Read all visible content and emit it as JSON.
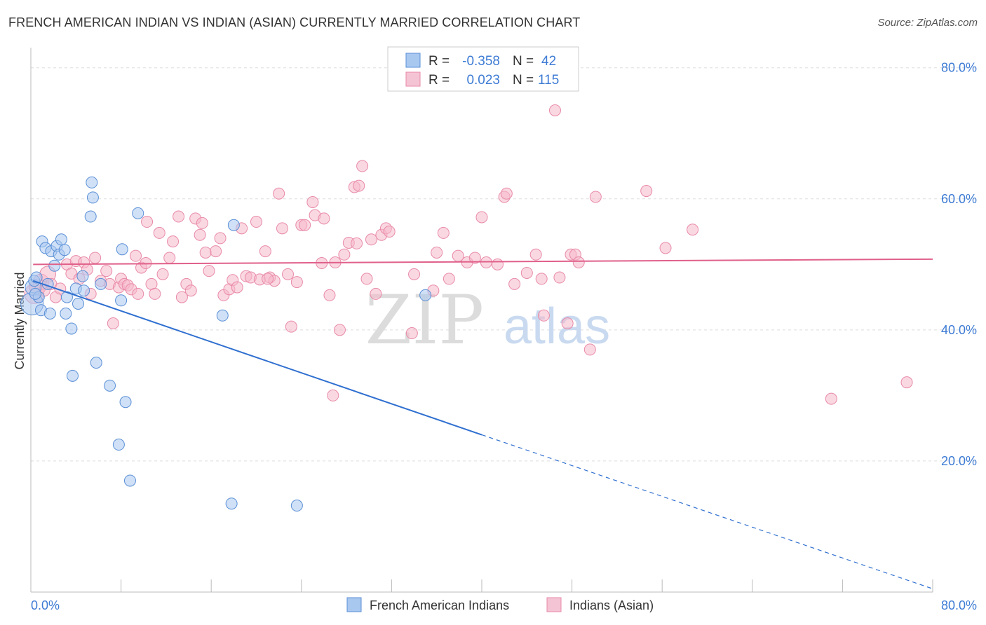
{
  "title": "FRENCH AMERICAN INDIAN VS INDIAN (ASIAN) CURRENTLY MARRIED CORRELATION CHART",
  "source": "Source: ZipAtlas.com",
  "watermark": {
    "zip": "ZIP",
    "atlas": "atlas"
  },
  "colors": {
    "blue_fill": "#a9c8f0",
    "blue_stroke": "#5b8fd6",
    "blue_line": "#2f6fd0",
    "pink_fill": "#f5b8cb",
    "pink_stroke": "#e88aa8",
    "pink_line": "#e0608a",
    "tick_text": "#3d7bd4",
    "grid": "#dddddd"
  },
  "legend": {
    "rows": [
      {
        "r_label": "R =",
        "r_value": "-0.358",
        "n_label": "N =",
        "n_value": "42",
        "swatch": "blue"
      },
      {
        "r_label": "R =",
        "r_value": "0.023",
        "n_label": "N =",
        "n_value": "115",
        "swatch": "pink"
      }
    ]
  },
  "bottom_legend": [
    "French American Indians",
    "Indians (Asian)"
  ],
  "chart_data": {
    "type": "scatter",
    "title": "FRENCH AMERICAN INDIAN VS INDIAN (ASIAN) CURRENTLY MARRIED CORRELATION CHART",
    "xlabel": "",
    "ylabel": "Currently Married",
    "xlim": [
      0,
      80
    ],
    "ylim": [
      0,
      82
    ],
    "x_tick_labels": [
      "0.0%",
      "80.0%"
    ],
    "y_ticks": [
      20,
      40,
      60,
      80
    ],
    "y_tick_labels": [
      "20.0%",
      "40.0%",
      "60.0%",
      "80.0%"
    ],
    "grid": true,
    "legend_position": "top-center",
    "series": [
      {
        "name": "French American Indians",
        "color": "blue",
        "r": -0.358,
        "n": 42,
        "trend": {
          "x0": 0.2,
          "y0": 47.5,
          "x1": 40.0,
          "y1": 24.0,
          "dash_to_x": 80.0,
          "dash_to_y": 0.5
        },
        "points": [
          [
            0.1,
            44.0,
            4
          ],
          [
            0.2,
            46.5,
            2
          ],
          [
            0.3,
            47.5,
            1
          ],
          [
            0.5,
            48.0,
            1
          ],
          [
            0.7,
            45.0,
            1
          ],
          [
            0.9,
            43.0,
            1
          ],
          [
            1.0,
            53.5,
            1
          ],
          [
            1.3,
            52.5,
            1
          ],
          [
            1.5,
            47.0,
            1
          ],
          [
            1.7,
            42.5,
            1
          ],
          [
            1.8,
            52.0,
            1
          ],
          [
            2.1,
            49.8,
            1
          ],
          [
            2.3,
            52.8,
            1
          ],
          [
            2.5,
            51.5,
            1
          ],
          [
            2.7,
            53.8,
            1
          ],
          [
            3.0,
            52.2,
            1
          ],
          [
            3.1,
            42.5,
            1
          ],
          [
            3.2,
            45.0,
            1
          ],
          [
            3.6,
            40.2,
            1
          ],
          [
            3.7,
            33.0,
            1
          ],
          [
            4.0,
            46.3,
            1
          ],
          [
            4.2,
            44.0,
            1
          ],
          [
            4.6,
            48.2,
            1
          ],
          [
            4.7,
            46.0,
            1
          ],
          [
            5.3,
            57.3,
            1
          ],
          [
            5.4,
            62.5,
            1
          ],
          [
            5.5,
            60.2,
            1
          ],
          [
            5.8,
            35.0,
            1
          ],
          [
            6.2,
            47.0,
            1
          ],
          [
            7.0,
            31.5,
            1
          ],
          [
            7.8,
            22.5,
            1
          ],
          [
            8.0,
            44.5,
            1
          ],
          [
            8.1,
            52.3,
            1
          ],
          [
            8.4,
            29.0,
            1
          ],
          [
            8.8,
            17.0,
            1
          ],
          [
            9.5,
            57.8,
            1
          ],
          [
            17.0,
            42.2,
            1
          ],
          [
            17.8,
            13.5,
            1
          ],
          [
            18.0,
            56.0,
            1
          ],
          [
            23.6,
            13.2,
            1
          ],
          [
            35.0,
            45.3,
            1
          ],
          [
            0.4,
            45.5,
            1
          ]
        ]
      },
      {
        "name": "Indians (Asian)",
        "color": "pink",
        "r": 0.023,
        "n": 115,
        "trend": {
          "x0": 0.2,
          "y0": 50.0,
          "x1": 80.0,
          "y1": 50.8
        },
        "points": [
          [
            0.3,
            45.5,
            3
          ],
          [
            0.6,
            46.5,
            2
          ],
          [
            0.9,
            47.3,
            2
          ],
          [
            1.2,
            46.0,
            1
          ],
          [
            1.5,
            48.5,
            2
          ],
          [
            1.8,
            47.0,
            1
          ],
          [
            2.2,
            45.0,
            1
          ],
          [
            2.6,
            46.3,
            1
          ],
          [
            3.2,
            50.0,
            1
          ],
          [
            3.6,
            48.6,
            1
          ],
          [
            4.0,
            50.5,
            1
          ],
          [
            4.3,
            47.8,
            1
          ],
          [
            4.7,
            50.3,
            1
          ],
          [
            5.0,
            49.2,
            1
          ],
          [
            5.3,
            45.5,
            1
          ],
          [
            5.7,
            51.0,
            1
          ],
          [
            6.2,
            47.5,
            1
          ],
          [
            6.7,
            49.0,
            1
          ],
          [
            7.0,
            47.0,
            1
          ],
          [
            7.3,
            41.0,
            1
          ],
          [
            7.8,
            46.5,
            1
          ],
          [
            8.0,
            47.8,
            1
          ],
          [
            8.3,
            47.0,
            1
          ],
          [
            8.6,
            46.8,
            1
          ],
          [
            8.9,
            46.2,
            1
          ],
          [
            9.3,
            51.3,
            1
          ],
          [
            9.5,
            45.5,
            1
          ],
          [
            9.8,
            49.5,
            1
          ],
          [
            10.2,
            50.2,
            1
          ],
          [
            10.3,
            56.5,
            1
          ],
          [
            10.7,
            47.0,
            1
          ],
          [
            11.0,
            45.5,
            1
          ],
          [
            11.4,
            54.8,
            1
          ],
          [
            11.7,
            48.5,
            1
          ],
          [
            12.3,
            51.0,
            1
          ],
          [
            12.6,
            53.5,
            1
          ],
          [
            13.1,
            57.3,
            1
          ],
          [
            13.4,
            45.0,
            1
          ],
          [
            13.8,
            47.0,
            1
          ],
          [
            14.2,
            46.0,
            1
          ],
          [
            14.6,
            57.0,
            1
          ],
          [
            15.0,
            54.5,
            1
          ],
          [
            15.2,
            56.3,
            1
          ],
          [
            15.5,
            51.8,
            1
          ],
          [
            15.8,
            49.0,
            1
          ],
          [
            16.4,
            52.0,
            1
          ],
          [
            16.8,
            54.0,
            1
          ],
          [
            17.1,
            45.3,
            1
          ],
          [
            17.6,
            46.2,
            1
          ],
          [
            17.9,
            47.6,
            1
          ],
          [
            18.3,
            46.5,
            1
          ],
          [
            18.7,
            55.5,
            1
          ],
          [
            19.1,
            48.2,
            1
          ],
          [
            19.5,
            48.0,
            1
          ],
          [
            20.0,
            56.5,
            1
          ],
          [
            20.3,
            47.7,
            1
          ],
          [
            20.8,
            52.0,
            1
          ],
          [
            21.2,
            48.0,
            1
          ],
          [
            21.6,
            47.5,
            1
          ],
          [
            22.0,
            60.8,
            1
          ],
          [
            22.3,
            55.5,
            1
          ],
          [
            22.8,
            48.5,
            1
          ],
          [
            23.1,
            40.5,
            1
          ],
          [
            23.6,
            47.3,
            1
          ],
          [
            24.0,
            56.0,
            1
          ],
          [
            24.3,
            56.0,
            1
          ],
          [
            25.0,
            59.5,
            1
          ],
          [
            25.2,
            57.5,
            1
          ],
          [
            25.8,
            50.2,
            1
          ],
          [
            26.0,
            57.0,
            1
          ],
          [
            26.5,
            45.3,
            1
          ],
          [
            27.0,
            50.3,
            1
          ],
          [
            27.4,
            40.0,
            1
          ],
          [
            27.8,
            51.5,
            1
          ],
          [
            28.2,
            53.3,
            1
          ],
          [
            28.7,
            61.8,
            1
          ],
          [
            29.1,
            62.0,
            1
          ],
          [
            29.4,
            65.0,
            1
          ],
          [
            29.8,
            47.8,
            1
          ],
          [
            30.2,
            53.8,
            1
          ],
          [
            30.6,
            45.5,
            1
          ],
          [
            31.1,
            54.5,
            1
          ],
          [
            31.5,
            55.5,
            1
          ],
          [
            31.8,
            55.0,
            1
          ],
          [
            33.8,
            39.5,
            1
          ],
          [
            34.0,
            48.5,
            1
          ],
          [
            35.7,
            46.0,
            1
          ],
          [
            36.0,
            51.8,
            1
          ],
          [
            36.6,
            54.8,
            1
          ],
          [
            37.1,
            47.8,
            1
          ],
          [
            37.9,
            51.3,
            1
          ],
          [
            38.7,
            50.3,
            1
          ],
          [
            39.4,
            51.0,
            1
          ],
          [
            40.0,
            57.2,
            1
          ],
          [
            40.4,
            50.3,
            1
          ],
          [
            41.4,
            50.0,
            1
          ],
          [
            42.0,
            60.3,
            1
          ],
          [
            42.2,
            60.8,
            1
          ],
          [
            42.9,
            47.0,
            1
          ],
          [
            44.0,
            48.7,
            1
          ],
          [
            44.8,
            51.5,
            1
          ],
          [
            45.3,
            47.8,
            1
          ],
          [
            45.5,
            42.2,
            1
          ],
          [
            46.9,
            48.0,
            1
          ],
          [
            47.6,
            41.0,
            1
          ],
          [
            47.9,
            51.5,
            1
          ],
          [
            48.3,
            51.5,
            1
          ],
          [
            48.6,
            50.3,
            1
          ],
          [
            46.5,
            73.5,
            1
          ],
          [
            49.6,
            37.0,
            1
          ],
          [
            50.1,
            60.3,
            1
          ],
          [
            54.6,
            61.2,
            1
          ],
          [
            56.3,
            52.5,
            1
          ],
          [
            58.7,
            55.3,
            1
          ],
          [
            71.0,
            29.5,
            1
          ],
          [
            77.7,
            32.0,
            1
          ],
          [
            26.8,
            30.0,
            1
          ],
          [
            21.0,
            47.8,
            1
          ],
          [
            28.9,
            53.2,
            1
          ]
        ]
      }
    ]
  }
}
